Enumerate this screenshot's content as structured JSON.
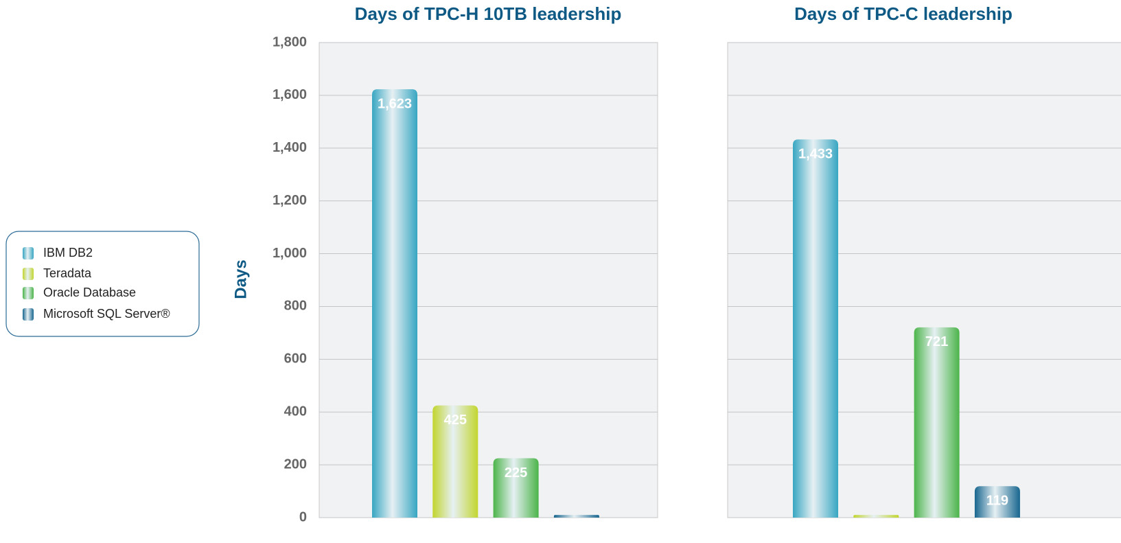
{
  "chart_data": [
    {
      "type": "bar",
      "title": "Days of TPC-H 10TB leadership",
      "ylabel": "Days",
      "series": [
        {
          "name": "IBM DB2",
          "color": "#38a6c2",
          "values": [
            1623
          ],
          "value_labels": [
            "1,623"
          ]
        },
        {
          "name": "Teradata",
          "color": "#c2d52e",
          "values": [
            425
          ],
          "value_labels": [
            "425"
          ]
        },
        {
          "name": "Oracle Database",
          "color": "#4bb449",
          "values": [
            225
          ],
          "value_labels": [
            "225"
          ]
        },
        {
          "name": "Microsoft SQL Server®",
          "color": "#17668f",
          "values": [
            10
          ],
          "value_labels": [
            null
          ]
        }
      ],
      "ylim": [
        0,
        1800
      ],
      "yticks": [
        0,
        200,
        400,
        600,
        800,
        {
          "value": 1000,
          "label": "1,000"
        },
        {
          "value": 1200,
          "label": "1,200"
        },
        {
          "value": 1400,
          "label": "1,400"
        },
        {
          "value": 1600,
          "label": "1,600"
        },
        {
          "value": 1800,
          "label": "1,800"
        }
      ],
      "grid": true
    },
    {
      "type": "bar",
      "title": "Days of TPC-C leadership",
      "values": [
        1433,
        10,
        721,
        119
      ],
      "value_labels": [
        "1,433",
        null,
        "721",
        "119"
      ],
      "ylim": [
        0,
        1800
      ],
      "grid": true
    }
  ]
}
